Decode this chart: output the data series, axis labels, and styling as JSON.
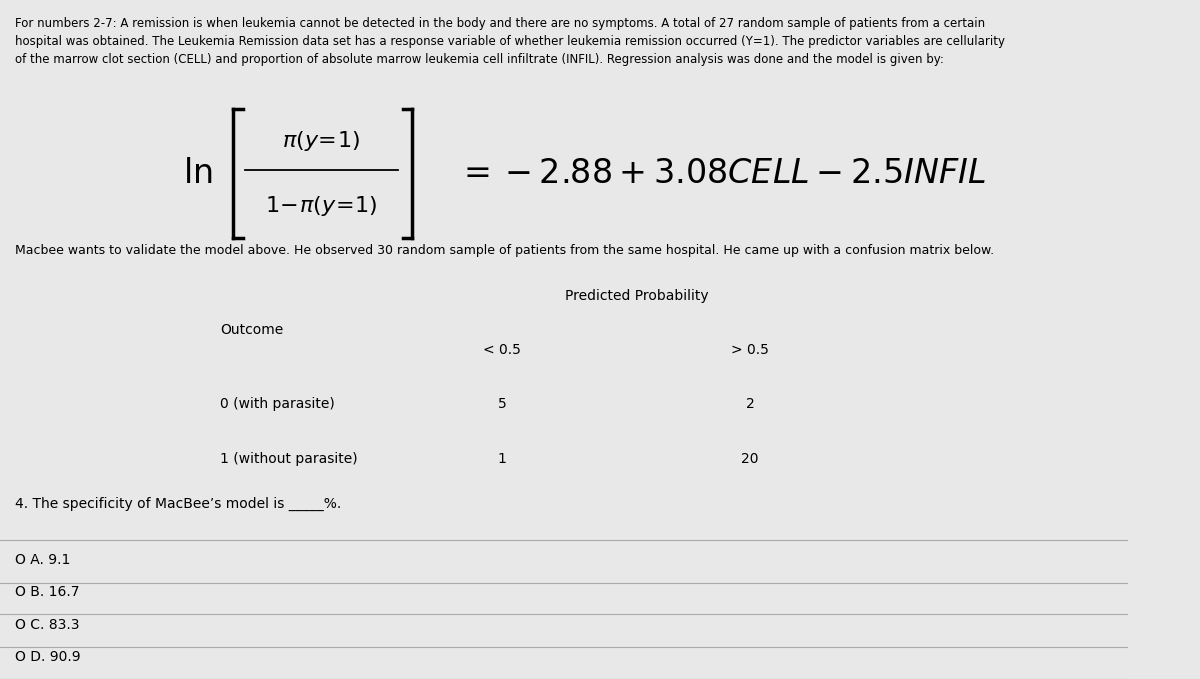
{
  "bg_color": "#e8e8e8",
  "intro_text": "For numbers 2-7: A remission is when leukemia cannot be detected in the body and there are no symptoms. A total of 27 random sample of patients from a certain\nhospital was obtained. The Leukemia Remission data set has a response variable of whether leukemia remission occurred (Y=1). The predictor variables are cellularity\nof the marrow clot section (CELL) and proportion of absolute marrow leukemia cell infiltrate (INFIL). Regression analysis was done and the model is given by:",
  "macbee_text": "Macbee wants to validate the model above. He observed 30 random sample of patients from the same hospital. He came up with a confusion matrix below.",
  "question_text": "4. The specificity of MacBee’s model is _____%.",
  "options": [
    "O A. 9.1",
    "O B. 16.7",
    "O C. 83.3",
    "O D. 90.9"
  ],
  "table_header_col": "Predicted Probability",
  "table_outcome_label": "Outcome",
  "table_col1": "< 0.5",
  "table_col2": "> 0.5",
  "table_row1_label": "0 (with parasite)",
  "table_row2_label": "1 (without parasite)",
  "table_row1_vals": [
    5,
    2
  ],
  "table_row2_vals": [
    1,
    20
  ]
}
